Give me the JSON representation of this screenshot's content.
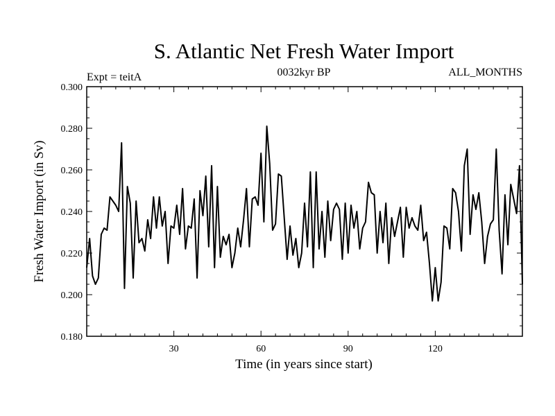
{
  "chart_data": {
    "type": "line",
    "title": "S. Atlantic Net Fresh Water Import",
    "subtitle_left": "Expt = teitA",
    "subtitle_center": "0032kyr BP",
    "subtitle_right": "ALL_MONTHS",
    "xlabel": "Time (in years since start)",
    "ylabel": "Fresh Water Import (in Sv)",
    "xlim": [
      0,
      150
    ],
    "ylim": [
      0.18,
      0.3
    ],
    "x_ticks": [
      30,
      60,
      90,
      120
    ],
    "x_tick_labels": [
      "30",
      "60",
      "90",
      "120"
    ],
    "y_ticks": [
      0.18,
      0.2,
      0.22,
      0.24,
      0.26,
      0.28,
      0.3
    ],
    "y_tick_labels": [
      "0.180",
      "0.200",
      "0.220",
      "0.240",
      "0.260",
      "0.280",
      "0.300"
    ],
    "series": [
      {
        "name": "Net Fresh Water Import",
        "x": [
          0,
          1,
          2,
          3,
          4,
          5,
          6,
          7,
          8,
          9,
          10,
          11,
          12,
          13,
          14,
          15,
          16,
          17,
          18,
          19,
          20,
          21,
          22,
          23,
          24,
          25,
          26,
          27,
          28,
          29,
          30,
          31,
          32,
          33,
          34,
          35,
          36,
          37,
          38,
          39,
          40,
          41,
          42,
          43,
          44,
          45,
          46,
          47,
          48,
          49,
          50,
          51,
          52,
          53,
          54,
          55,
          56,
          57,
          58,
          59,
          60,
          61,
          62,
          63,
          64,
          65,
          66,
          67,
          68,
          69,
          70,
          71,
          72,
          73,
          74,
          75,
          76,
          77,
          78,
          79,
          80,
          81,
          82,
          83,
          84,
          85,
          86,
          87,
          88,
          89,
          90,
          91,
          92,
          93,
          94,
          95,
          96,
          97,
          98,
          99,
          100,
          101,
          102,
          103,
          104,
          105,
          106,
          107,
          108,
          109,
          110,
          111,
          112,
          113,
          114,
          115,
          116,
          117,
          118,
          119,
          120,
          121,
          122,
          123,
          124,
          125,
          126,
          127,
          128,
          129,
          130,
          131,
          132,
          133,
          134,
          135,
          136,
          137,
          138,
          139,
          140,
          141,
          142,
          143,
          144,
          145,
          146,
          147,
          148,
          149,
          150
        ],
        "values": [
          0.213,
          0.227,
          0.209,
          0.205,
          0.208,
          0.229,
          0.232,
          0.231,
          0.247,
          0.245,
          0.243,
          0.24,
          0.273,
          0.203,
          0.252,
          0.244,
          0.208,
          0.245,
          0.225,
          0.227,
          0.221,
          0.236,
          0.227,
          0.247,
          0.232,
          0.247,
          0.233,
          0.24,
          0.215,
          0.233,
          0.232,
          0.243,
          0.229,
          0.251,
          0.222,
          0.233,
          0.232,
          0.246,
          0.208,
          0.25,
          0.238,
          0.257,
          0.223,
          0.262,
          0.213,
          0.252,
          0.218,
          0.228,
          0.224,
          0.229,
          0.213,
          0.22,
          0.232,
          0.223,
          0.236,
          0.251,
          0.223,
          0.246,
          0.247,
          0.243,
          0.268,
          0.235,
          0.281,
          0.263,
          0.231,
          0.234,
          0.258,
          0.257,
          0.237,
          0.217,
          0.233,
          0.219,
          0.227,
          0.213,
          0.22,
          0.244,
          0.223,
          0.259,
          0.213,
          0.259,
          0.222,
          0.24,
          0.218,
          0.245,
          0.226,
          0.241,
          0.244,
          0.241,
          0.217,
          0.244,
          0.22,
          0.243,
          0.232,
          0.24,
          0.222,
          0.232,
          0.235,
          0.254,
          0.249,
          0.248,
          0.22,
          0.24,
          0.225,
          0.244,
          0.215,
          0.237,
          0.228,
          0.235,
          0.242,
          0.218,
          0.242,
          0.232,
          0.237,
          0.233,
          0.231,
          0.243,
          0.226,
          0.23,
          0.215,
          0.197,
          0.213,
          0.197,
          0.206,
          0.233,
          0.232,
          0.222,
          0.251,
          0.249,
          0.24,
          0.221,
          0.262,
          0.27,
          0.229,
          0.248,
          0.241,
          0.249,
          0.235,
          0.215,
          0.228,
          0.234,
          0.236,
          0.27,
          0.231,
          0.21,
          0.248,
          0.224,
          0.253,
          0.246,
          0.239,
          0.262,
          0.205
        ]
      }
    ]
  }
}
